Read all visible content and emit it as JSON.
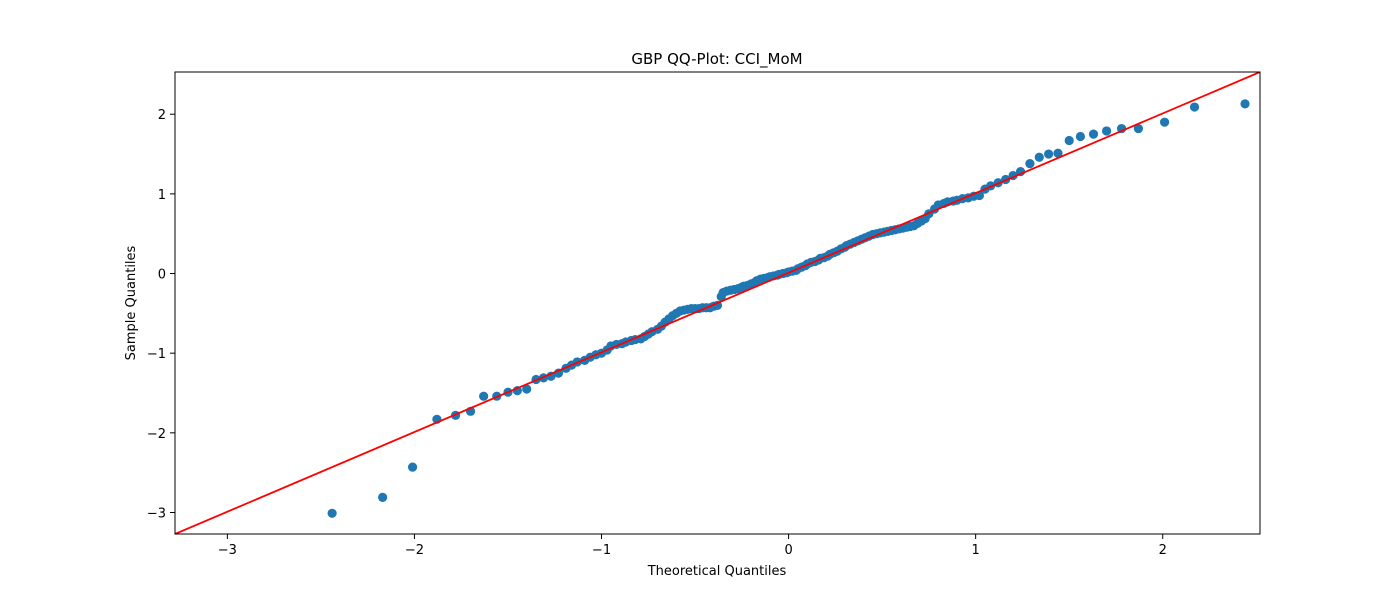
{
  "chart_data": {
    "type": "scatter",
    "title": "GBP QQ-Plot: CCI_MoM",
    "xlabel": "Theoretical Quantiles",
    "ylabel": "Sample Quantiles",
    "xlim": [
      -3.28,
      2.52
    ],
    "ylim": [
      -3.27,
      2.53
    ],
    "xticks": [
      -3,
      -2,
      -1,
      0,
      1,
      2
    ],
    "yticks": [
      -3,
      -2,
      -1,
      0,
      1,
      2
    ],
    "xtick_labels": [
      "−3",
      "−2",
      "−1",
      "0",
      "1",
      "2"
    ],
    "ytick_labels": [
      "−3",
      "−2",
      "−1",
      "0",
      "1",
      "2"
    ],
    "grid": false,
    "series": [
      {
        "kind": "points",
        "color": "#1f77b4",
        "x": [
          -2.44,
          -2.17,
          -2.01,
          -1.88,
          -1.78,
          -1.7,
          -1.63,
          -1.56,
          -1.5,
          -1.45,
          -1.4,
          -1.35,
          -1.31,
          -1.27,
          -1.23,
          -1.19,
          -1.16,
          -1.13,
          -1.09,
          -1.06,
          -1.03,
          -1.0,
          -0.97,
          -0.95,
          -0.92,
          -0.89,
          -0.87,
          -0.84,
          -0.82,
          -0.79,
          -0.77,
          -0.75,
          -0.73,
          -0.7,
          -0.68,
          -0.66,
          -0.64,
          -0.62,
          -0.6,
          -0.58,
          -0.56,
          -0.54,
          -0.52,
          -0.5,
          -0.48,
          -0.46,
          -0.44,
          -0.42,
          -0.4,
          -0.38,
          -0.36,
          -0.35,
          -0.33,
          -0.31,
          -0.29,
          -0.27,
          -0.25,
          -0.24,
          -0.22,
          -0.2,
          -0.18,
          -0.17,
          -0.15,
          -0.13,
          -0.11,
          -0.1,
          -0.08,
          -0.06,
          -0.05,
          -0.03,
          -0.01,
          0.0,
          0.02,
          0.04,
          0.05,
          0.07,
          0.09,
          0.1,
          0.12,
          0.14,
          0.16,
          0.17,
          0.19,
          0.21,
          0.22,
          0.24,
          0.26,
          0.28,
          0.3,
          0.31,
          0.33,
          0.35,
          0.37,
          0.39,
          0.41,
          0.43,
          0.45,
          0.47,
          0.49,
          0.51,
          0.53,
          0.55,
          0.57,
          0.59,
          0.61,
          0.63,
          0.65,
          0.67,
          0.69,
          0.71,
          0.73,
          0.75,
          0.78,
          0.8,
          0.83,
          0.85,
          0.88,
          0.9,
          0.93,
          0.96,
          0.99,
          1.02,
          1.05,
          1.08,
          1.12,
          1.16,
          1.2,
          1.24,
          1.29,
          1.34,
          1.39,
          1.44,
          1.5,
          1.56,
          1.63,
          1.7,
          1.78,
          1.87,
          2.01,
          2.17,
          2.44
        ],
        "y": [
          -3.01,
          -2.81,
          -2.43,
          -1.83,
          -1.78,
          -1.73,
          -1.54,
          -1.54,
          -1.49,
          -1.47,
          -1.45,
          -1.33,
          -1.31,
          -1.29,
          -1.25,
          -1.19,
          -1.15,
          -1.11,
          -1.09,
          -1.05,
          -1.02,
          -1.0,
          -0.96,
          -0.91,
          -0.89,
          -0.88,
          -0.86,
          -0.84,
          -0.83,
          -0.82,
          -0.79,
          -0.76,
          -0.73,
          -0.7,
          -0.66,
          -0.61,
          -0.57,
          -0.53,
          -0.5,
          -0.47,
          -0.46,
          -0.45,
          -0.44,
          -0.44,
          -0.44,
          -0.43,
          -0.43,
          -0.43,
          -0.41,
          -0.4,
          -0.29,
          -0.24,
          -0.22,
          -0.21,
          -0.2,
          -0.19,
          -0.17,
          -0.16,
          -0.15,
          -0.13,
          -0.11,
          -0.09,
          -0.07,
          -0.06,
          -0.05,
          -0.04,
          -0.03,
          -0.02,
          -0.01,
          0.0,
          0.01,
          0.02,
          0.03,
          0.04,
          0.06,
          0.08,
          0.1,
          0.12,
          0.14,
          0.15,
          0.17,
          0.19,
          0.2,
          0.22,
          0.24,
          0.26,
          0.28,
          0.31,
          0.33,
          0.35,
          0.37,
          0.39,
          0.41,
          0.43,
          0.45,
          0.47,
          0.49,
          0.5,
          0.51,
          0.52,
          0.53,
          0.54,
          0.55,
          0.56,
          0.57,
          0.58,
          0.59,
          0.6,
          0.63,
          0.66,
          0.69,
          0.75,
          0.81,
          0.86,
          0.88,
          0.9,
          0.91,
          0.92,
          0.94,
          0.95,
          0.97,
          0.98,
          1.06,
          1.1,
          1.14,
          1.18,
          1.23,
          1.28,
          1.38,
          1.46,
          1.5,
          1.51,
          1.67,
          1.72,
          1.75,
          1.79,
          1.82,
          1.82,
          1.9,
          2.09,
          2.13
        ]
      },
      {
        "kind": "reference-line",
        "color": "#ff0000",
        "x": [
          -3.28,
          2.52
        ],
        "y": [
          -3.27,
          2.53
        ]
      }
    ]
  }
}
